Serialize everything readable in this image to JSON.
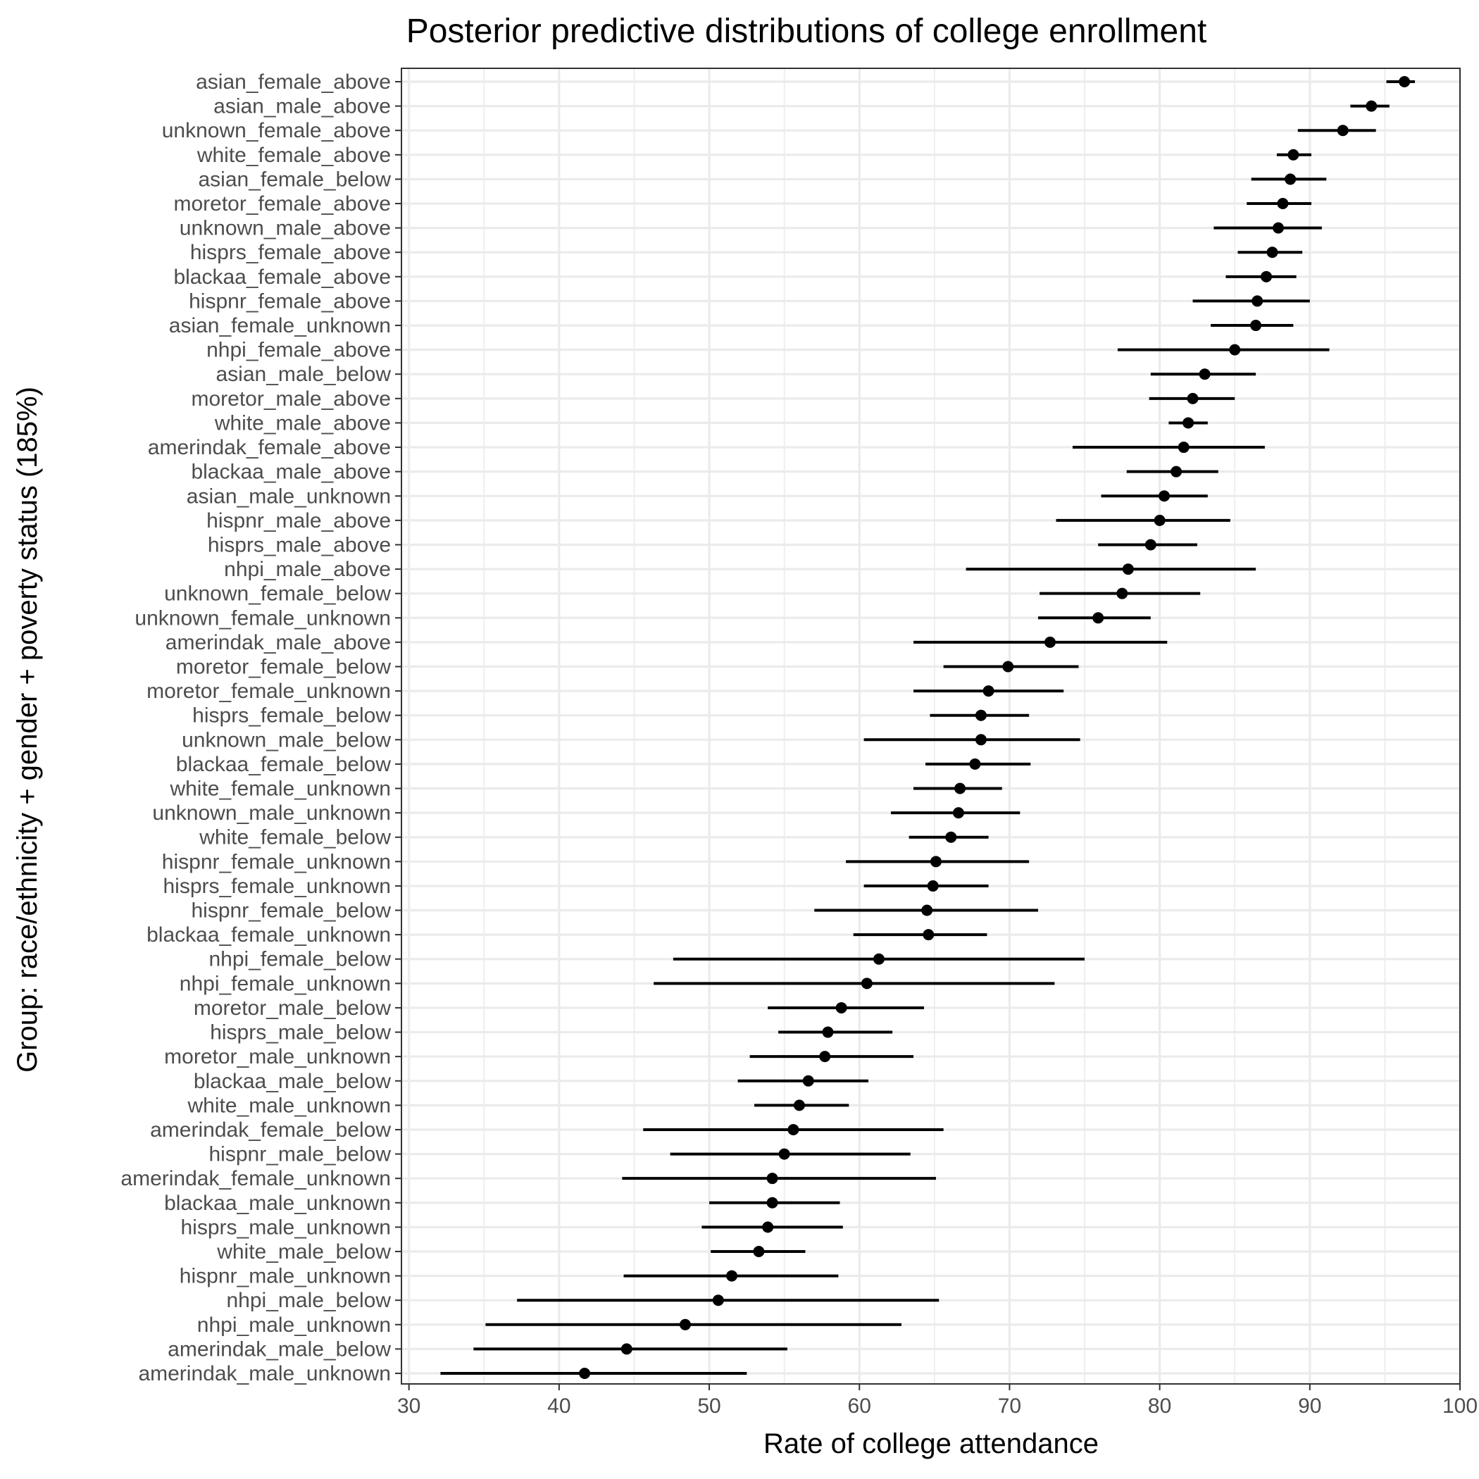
{
  "chart_data": {
    "type": "scatter",
    "title": "Posterior predictive distributions of college enrollment",
    "xlabel": "Rate of college attendance",
    "ylabel": "Group: race/ethnicity + gender + poverty status (185%)",
    "xlim": [
      29.5,
      100
    ],
    "xticks": [
      30,
      40,
      50,
      60,
      70,
      80,
      90,
      100
    ],
    "grid": true,
    "legend": "none",
    "point_color": "#000000",
    "grid_color": "#ebebeb",
    "points": [
      {
        "label": "asian_female_above",
        "x": 96.3,
        "low": 95.1,
        "high": 97.0
      },
      {
        "label": "asian_male_above",
        "x": 94.1,
        "low": 92.7,
        "high": 95.3
      },
      {
        "label": "unknown_female_above",
        "x": 92.2,
        "low": 89.2,
        "high": 94.4
      },
      {
        "label": "white_female_above",
        "x": 88.9,
        "low": 87.8,
        "high": 90.1
      },
      {
        "label": "asian_female_below",
        "x": 88.7,
        "low": 86.1,
        "high": 91.1
      },
      {
        "label": "moretor_female_above",
        "x": 88.2,
        "low": 85.8,
        "high": 90.1
      },
      {
        "label": "unknown_male_above",
        "x": 87.9,
        "low": 83.6,
        "high": 90.8
      },
      {
        "label": "hisprs_female_above",
        "x": 87.5,
        "low": 85.2,
        "high": 89.5
      },
      {
        "label": "blackaa_female_above",
        "x": 87.1,
        "low": 84.4,
        "high": 89.1
      },
      {
        "label": "hispnr_female_above",
        "x": 86.5,
        "low": 82.2,
        "high": 90.0
      },
      {
        "label": "asian_female_unknown",
        "x": 86.4,
        "low": 83.4,
        "high": 88.9
      },
      {
        "label": "nhpi_female_above",
        "x": 85.0,
        "low": 77.2,
        "high": 91.3
      },
      {
        "label": "asian_male_below",
        "x": 83.0,
        "low": 79.4,
        "high": 86.4
      },
      {
        "label": "moretor_male_above",
        "x": 82.2,
        "low": 79.3,
        "high": 85.0
      },
      {
        "label": "white_male_above",
        "x": 81.9,
        "low": 80.6,
        "high": 83.2
      },
      {
        "label": "amerindak_female_above",
        "x": 81.6,
        "low": 74.2,
        "high": 87.0
      },
      {
        "label": "blackaa_male_above",
        "x": 81.1,
        "low": 77.8,
        "high": 83.9
      },
      {
        "label": "asian_male_unknown",
        "x": 80.3,
        "low": 76.1,
        "high": 83.2
      },
      {
        "label": "hispnr_male_above",
        "x": 80.0,
        "low": 73.1,
        "high": 84.7
      },
      {
        "label": "hisprs_male_above",
        "x": 79.4,
        "low": 75.9,
        "high": 82.5
      },
      {
        "label": "nhpi_male_above",
        "x": 77.9,
        "low": 67.1,
        "high": 86.4
      },
      {
        "label": "unknown_female_below",
        "x": 77.5,
        "low": 72.0,
        "high": 82.7
      },
      {
        "label": "unknown_female_unknown",
        "x": 75.9,
        "low": 71.9,
        "high": 79.4
      },
      {
        "label": "amerindak_male_above",
        "x": 72.7,
        "low": 63.6,
        "high": 80.5
      },
      {
        "label": "moretor_female_below",
        "x": 69.9,
        "low": 65.6,
        "high": 74.6
      },
      {
        "label": "moretor_female_unknown",
        "x": 68.6,
        "low": 63.6,
        "high": 73.6
      },
      {
        "label": "hisprs_female_below",
        "x": 68.1,
        "low": 64.7,
        "high": 71.3
      },
      {
        "label": "unknown_male_below",
        "x": 68.1,
        "low": 60.3,
        "high": 74.7
      },
      {
        "label": "blackaa_female_below",
        "x": 67.7,
        "low": 64.4,
        "high": 71.4
      },
      {
        "label": "white_female_unknown",
        "x": 66.7,
        "low": 63.6,
        "high": 69.5
      },
      {
        "label": "unknown_male_unknown",
        "x": 66.6,
        "low": 62.1,
        "high": 70.7
      },
      {
        "label": "white_female_below",
        "x": 66.1,
        "low": 63.3,
        "high": 68.6
      },
      {
        "label": "hispnr_female_unknown",
        "x": 65.1,
        "low": 59.1,
        "high": 71.3
      },
      {
        "label": "hisprs_female_unknown",
        "x": 64.9,
        "low": 60.3,
        "high": 68.6
      },
      {
        "label": "hispnr_female_below",
        "x": 64.5,
        "low": 57.0,
        "high": 71.9
      },
      {
        "label": "blackaa_female_unknown",
        "x": 64.6,
        "low": 59.6,
        "high": 68.5
      },
      {
        "label": "nhpi_female_below",
        "x": 61.3,
        "low": 47.6,
        "high": 75.0
      },
      {
        "label": "nhpi_female_unknown",
        "x": 60.5,
        "low": 46.3,
        "high": 73.0
      },
      {
        "label": "moretor_male_below",
        "x": 58.8,
        "low": 53.9,
        "high": 64.3
      },
      {
        "label": "hisprs_male_below",
        "x": 57.9,
        "low": 54.6,
        "high": 62.2
      },
      {
        "label": "moretor_male_unknown",
        "x": 57.7,
        "low": 52.7,
        "high": 63.6
      },
      {
        "label": "blackaa_male_below",
        "x": 56.6,
        "low": 51.9,
        "high": 60.6
      },
      {
        "label": "white_male_unknown",
        "x": 56.0,
        "low": 53.0,
        "high": 59.3
      },
      {
        "label": "amerindak_female_below",
        "x": 55.6,
        "low": 45.6,
        "high": 65.6
      },
      {
        "label": "hispnr_male_below",
        "x": 55.0,
        "low": 47.4,
        "high": 63.4
      },
      {
        "label": "amerindak_female_unknown",
        "x": 54.2,
        "low": 44.2,
        "high": 65.1
      },
      {
        "label": "blackaa_male_unknown",
        "x": 54.2,
        "low": 50.0,
        "high": 58.7
      },
      {
        "label": "hisprs_male_unknown",
        "x": 53.9,
        "low": 49.5,
        "high": 58.9
      },
      {
        "label": "white_male_below",
        "x": 53.3,
        "low": 50.1,
        "high": 56.4
      },
      {
        "label": "hispnr_male_unknown",
        "x": 51.5,
        "low": 44.3,
        "high": 58.6
      },
      {
        "label": "nhpi_male_below",
        "x": 50.6,
        "low": 37.2,
        "high": 65.3
      },
      {
        "label": "nhpi_male_unknown",
        "x": 48.4,
        "low": 35.1,
        "high": 62.8
      },
      {
        "label": "amerindak_male_below",
        "x": 44.5,
        "low": 34.3,
        "high": 55.2
      },
      {
        "label": "amerindak_male_unknown",
        "x": 41.7,
        "low": 32.1,
        "high": 52.5
      }
    ]
  }
}
